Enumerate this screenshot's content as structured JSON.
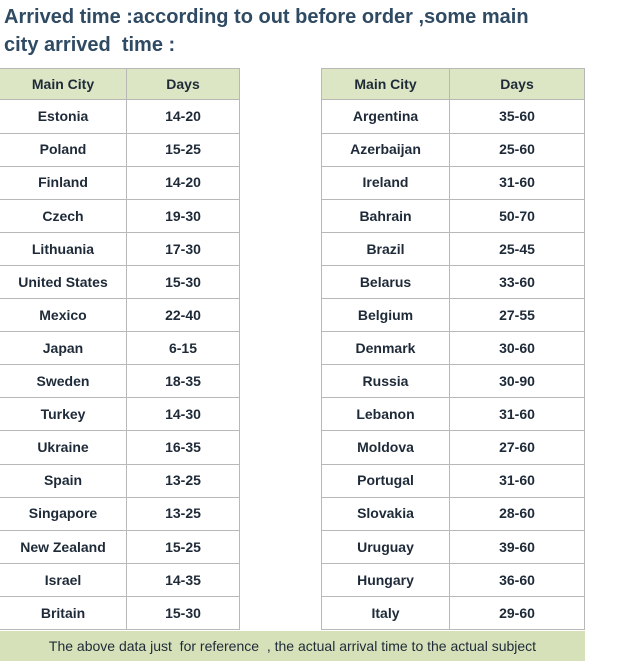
{
  "header": {
    "lines": [
      "Arrived time :according to out before order ,some main",
      "city arrived  time :"
    ]
  },
  "tables": [
    {
      "columns": [
        "Main City",
        "Days"
      ],
      "rows": [
        [
          "Estonia",
          "14-20"
        ],
        [
          "Poland",
          "15-25"
        ],
        [
          "Finland",
          "14-20"
        ],
        [
          "Czech",
          "19-30"
        ],
        [
          "Lithuania",
          "17-30"
        ],
        [
          "United States",
          "15-30"
        ],
        [
          "Mexico",
          "22-40"
        ],
        [
          "Japan",
          "6-15"
        ],
        [
          "Sweden",
          "18-35"
        ],
        [
          "Turkey",
          "14-30"
        ],
        [
          "Ukraine",
          "16-35"
        ],
        [
          "Spain",
          "13-25"
        ],
        [
          "Singapore",
          "13-25"
        ],
        [
          "New Zealand",
          "15-25"
        ],
        [
          "Israel",
          "14-35"
        ],
        [
          "Britain",
          "15-30"
        ]
      ]
    },
    {
      "columns": [
        "Main City",
        "Days"
      ],
      "rows": [
        [
          "Argentina",
          "35-60"
        ],
        [
          "Azerbaijan",
          "25-60"
        ],
        [
          "Ireland",
          "31-60"
        ],
        [
          "Bahrain",
          "50-70"
        ],
        [
          "Brazil",
          "25-45"
        ],
        [
          "Belarus",
          "33-60"
        ],
        [
          "Belgium",
          "27-55"
        ],
        [
          "Denmark",
          "30-60"
        ],
        [
          "Russia",
          "30-90"
        ],
        [
          "Lebanon",
          "31-60"
        ],
        [
          "Moldova",
          "27-60"
        ],
        [
          "Portugal",
          "31-60"
        ],
        [
          "Slovakia",
          "28-60"
        ],
        [
          "Uruguay",
          "39-60"
        ],
        [
          "Hungary",
          "36-60"
        ],
        [
          "Italy",
          "29-60"
        ]
      ]
    }
  ],
  "footer": {
    "note": "The above data just  for reference  , the actual arrival time to the actual subject"
  }
}
